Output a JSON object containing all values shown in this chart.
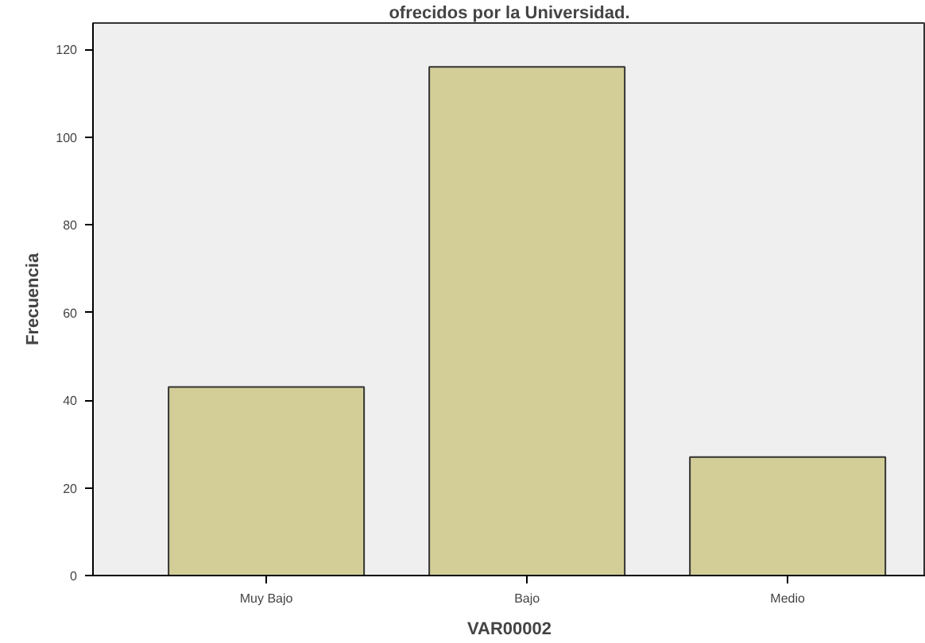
{
  "chart_data": {
    "type": "bar",
    "title": "ofrecidos por la Universidad.",
    "xlabel": "VAR00002",
    "ylabel": "Frecuencia",
    "categories": [
      "Muy Bajo",
      "Bajo",
      "Medio"
    ],
    "values": [
      43,
      116,
      27
    ],
    "color": "#d3ce97",
    "ylim": [
      0,
      126
    ],
    "yticks": [
      0,
      20,
      40,
      60,
      80,
      100,
      120
    ],
    "grid": false
  }
}
